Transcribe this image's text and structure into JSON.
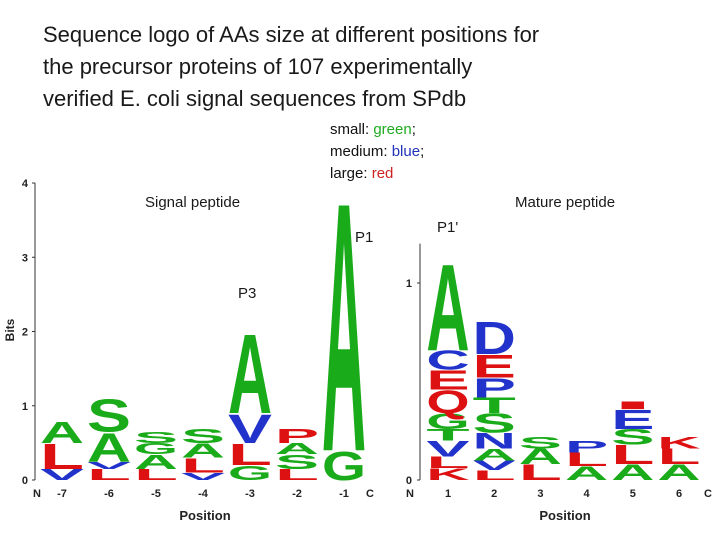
{
  "title": [
    "Sequence logo of AAs size at different positions for",
    "the precursor proteins of 107 experimentally",
    "verified E. coli signal sequences from SPdb"
  ],
  "legend": [
    {
      "label": "small:",
      "word": "green",
      "end": ";",
      "color": "#1faa1f"
    },
    {
      "label": "medium:",
      "word": "blue",
      "end": ";",
      "color": "#2233bb"
    },
    {
      "label": "large:",
      "word": "red",
      "color": "#cc2222"
    }
  ],
  "chart_data": [
    {
      "type": "logo",
      "ylabel": "Bits",
      "xlabel": "Position",
      "start_label": "N",
      "end_label": "C",
      "annotations": [
        "Signal peptide",
        "P1",
        "P3"
      ],
      "ylim": [
        0,
        4
      ],
      "yticks": [
        0,
        1,
        2,
        3,
        4
      ],
      "categories": [
        "-7",
        "-6",
        "-5",
        "-4",
        "-3",
        "-2",
        "-1"
      ],
      "stacks": [
        [
          {
            "letter": "V",
            "bits": 0.15,
            "color": "#2233cc"
          },
          {
            "letter": "L",
            "bits": 0.35,
            "color": "#dd1111"
          },
          {
            "letter": "A",
            "bits": 0.3,
            "color": "#1aab1a"
          }
        ],
        [
          {
            "letter": "L",
            "bits": 0.15,
            "color": "#dd1111"
          },
          {
            "letter": "V",
            "bits": 0.1,
            "color": "#2233cc"
          },
          {
            "letter": "A",
            "bits": 0.4,
            "color": "#1aab1a"
          },
          {
            "letter": "S",
            "bits": 0.45,
            "color": "#1aab1a"
          }
        ],
        [
          {
            "letter": "L",
            "bits": 0.15,
            "color": "#dd1111"
          },
          {
            "letter": "A",
            "bits": 0.2,
            "color": "#1aab1a"
          },
          {
            "letter": "G",
            "bits": 0.15,
            "color": "#1aab1a"
          },
          {
            "letter": "S",
            "bits": 0.15,
            "color": "#1aab1a"
          }
        ],
        [
          {
            "letter": "V",
            "bits": 0.1,
            "color": "#2233cc"
          },
          {
            "letter": "L",
            "bits": 0.2,
            "color": "#dd1111"
          },
          {
            "letter": "A",
            "bits": 0.2,
            "color": "#1aab1a"
          },
          {
            "letter": "S",
            "bits": 0.2,
            "color": "#1aab1a"
          }
        ],
        [
          {
            "letter": "G",
            "bits": 0.2,
            "color": "#1aab1a"
          },
          {
            "letter": "L",
            "bits": 0.3,
            "color": "#dd1111"
          },
          {
            "letter": "V",
            "bits": 0.4,
            "color": "#2233cc"
          },
          {
            "letter": "A",
            "bits": 1.1,
            "color": "#1aab1a"
          }
        ],
        [
          {
            "letter": "L",
            "bits": 0.15,
            "color": "#dd1111"
          },
          {
            "letter": "S",
            "bits": 0.2,
            "color": "#1aab1a"
          },
          {
            "letter": "A",
            "bits": 0.15,
            "color": "#1aab1a"
          },
          {
            "letter": "P",
            "bits": 0.2,
            "color": "#dd1111"
          }
        ],
        [
          {
            "letter": "G",
            "bits": 0.4,
            "color": "#1aab1a"
          },
          {
            "letter": "A",
            "bits": 3.45,
            "color": "#1aab1a"
          }
        ]
      ]
    },
    {
      "type": "logo",
      "xlabel": "Position",
      "start_label": "N",
      "end_label": "C",
      "annotations": [
        "Mature peptide",
        "P1'"
      ],
      "ylim": [
        0,
        1.2
      ],
      "yticks": [
        0,
        1
      ],
      "categories": [
        "1",
        "2",
        "3",
        "4",
        "5",
        "6"
      ],
      "stacks": [
        [
          {
            "letter": "K",
            "bits": 0.06,
            "color": "#dd1111"
          },
          {
            "letter": "L",
            "bits": 0.06,
            "color": "#dd1111"
          },
          {
            "letter": "V",
            "bits": 0.08,
            "color": "#2233cc"
          },
          {
            "letter": "T",
            "bits": 0.06,
            "color": "#1aab1a"
          },
          {
            "letter": "G",
            "bits": 0.08,
            "color": "#1aab1a"
          },
          {
            "letter": "Q",
            "bits": 0.12,
            "color": "#dd1111"
          },
          {
            "letter": "E",
            "bits": 0.1,
            "color": "#dd1111"
          },
          {
            "letter": "C",
            "bits": 0.1,
            "color": "#2233cc"
          },
          {
            "letter": "A",
            "bits": 0.45,
            "color": "#1aab1a"
          }
        ],
        [
          {
            "letter": "L",
            "bits": 0.05,
            "color": "#dd1111"
          },
          {
            "letter": "V",
            "bits": 0.05,
            "color": "#2233cc"
          },
          {
            "letter": "A",
            "bits": 0.06,
            "color": "#1aab1a"
          },
          {
            "letter": "N",
            "bits": 0.08,
            "color": "#2233cc"
          },
          {
            "letter": "S",
            "bits": 0.1,
            "color": "#1aab1a"
          },
          {
            "letter": "T",
            "bits": 0.08,
            "color": "#1aab1a"
          },
          {
            "letter": "P",
            "bits": 0.1,
            "color": "#2233cc"
          },
          {
            "letter": "E",
            "bits": 0.12,
            "color": "#dd1111"
          },
          {
            "letter": "D",
            "bits": 0.17,
            "color": "#2233cc"
          }
        ],
        [
          {
            "letter": "L",
            "bits": 0.08,
            "color": "#dd1111"
          },
          {
            "letter": "A",
            "bits": 0.08,
            "color": "#1aab1a"
          },
          {
            "letter": "S",
            "bits": 0.06,
            "color": "#1aab1a"
          }
        ],
        [
          {
            "letter": "A",
            "bits": 0.07,
            "color": "#1aab1a"
          },
          {
            "letter": "L",
            "bits": 0.07,
            "color": "#dd1111"
          },
          {
            "letter": "P",
            "bits": 0.06,
            "color": "#2233cc"
          }
        ],
        [
          {
            "letter": "A",
            "bits": 0.08,
            "color": "#1aab1a"
          },
          {
            "letter": "L",
            "bits": 0.1,
            "color": "#dd1111"
          },
          {
            "letter": "S",
            "bits": 0.08,
            "color": "#1aab1a"
          },
          {
            "letter": "E",
            "bits": 0.1,
            "color": "#2233cc"
          },
          {
            "letter": "I",
            "bits": 0.04,
            "color": "#dd1111"
          }
        ],
        [
          {
            "letter": "A",
            "bits": 0.08,
            "color": "#1aab1a"
          },
          {
            "letter": "L",
            "bits": 0.08,
            "color": "#dd1111"
          },
          {
            "letter": "K",
            "bits": 0.06,
            "color": "#dd1111"
          }
        ]
      ]
    }
  ]
}
